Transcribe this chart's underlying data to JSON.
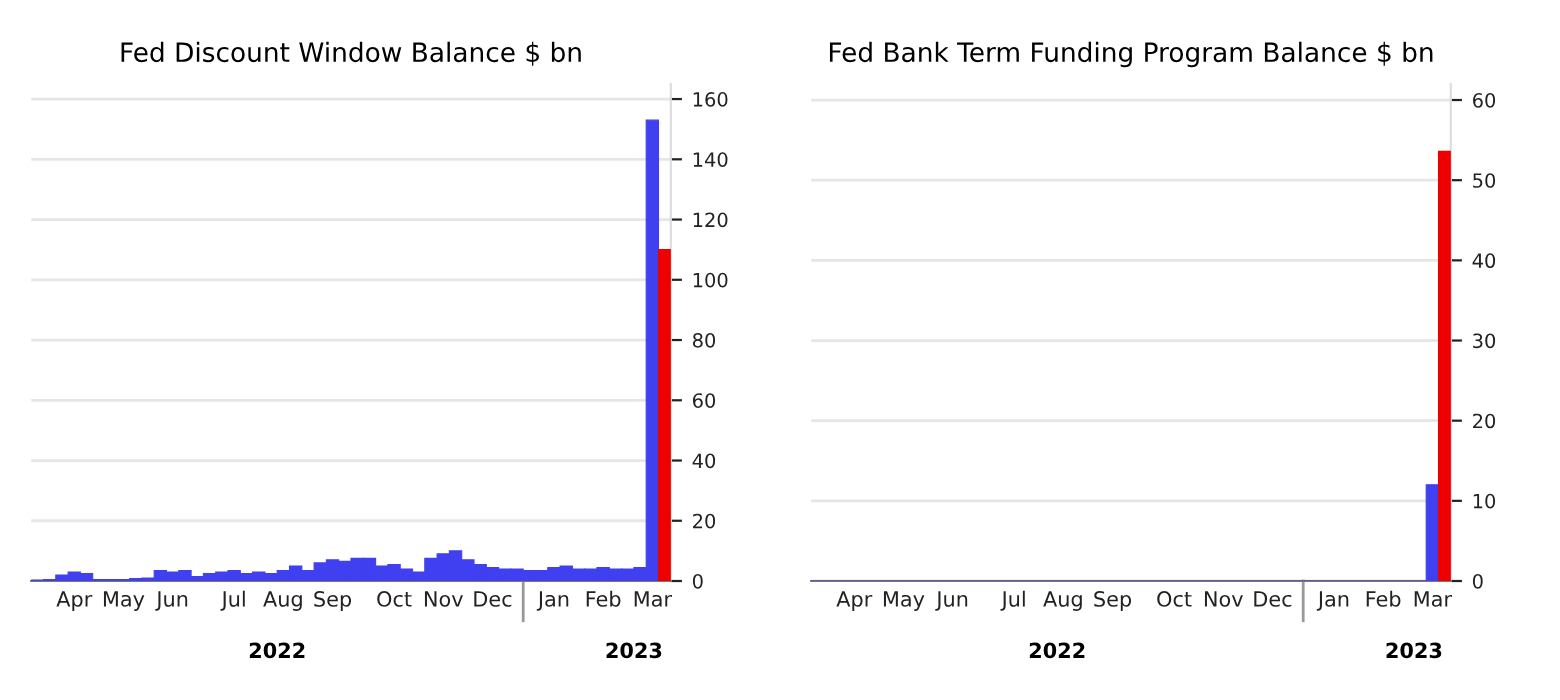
{
  "chart_data": [
    {
      "type": "bar",
      "title": "Fed Discount Window Balance $ bn",
      "categories": [
        null,
        null,
        null,
        "Apr",
        null,
        null,
        null,
        "May",
        null,
        null,
        null,
        "Jun",
        null,
        null,
        null,
        null,
        "Jul",
        null,
        null,
        null,
        "Aug",
        null,
        null,
        null,
        "Sep",
        null,
        null,
        null,
        null,
        "Oct",
        null,
        null,
        null,
        "Nov",
        null,
        null,
        null,
        "Dec",
        null,
        null,
        null,
        null,
        "Jan",
        null,
        null,
        null,
        "Feb",
        null,
        null,
        null,
        "Mar",
        null
      ],
      "values": [
        0.3,
        0.5,
        2,
        3,
        2.5,
        0.5,
        0.5,
        0.5,
        0.8,
        1,
        3.5,
        3,
        3.5,
        1.5,
        2.5,
        3,
        3.5,
        2.5,
        3,
        2.5,
        3.5,
        5,
        3.5,
        6,
        7,
        6.5,
        7.5,
        7.5,
        5,
        5.5,
        4,
        3,
        7.5,
        9,
        10,
        7,
        5.5,
        4.5,
        4,
        4,
        3.5,
        3.5,
        4.5,
        5,
        4,
        4,
        4.5,
        4,
        4,
        4.5,
        153,
        110
      ],
      "colors": [
        "#4040f0",
        "#4040f0",
        "#4040f0",
        "#4040f0",
        "#4040f0",
        "#4040f0",
        "#4040f0",
        "#4040f0",
        "#4040f0",
        "#4040f0",
        "#4040f0",
        "#4040f0",
        "#4040f0",
        "#4040f0",
        "#4040f0",
        "#4040f0",
        "#4040f0",
        "#4040f0",
        "#4040f0",
        "#4040f0",
        "#4040f0",
        "#4040f0",
        "#4040f0",
        "#4040f0",
        "#4040f0",
        "#4040f0",
        "#4040f0",
        "#4040f0",
        "#4040f0",
        "#4040f0",
        "#4040f0",
        "#4040f0",
        "#4040f0",
        "#4040f0",
        "#4040f0",
        "#4040f0",
        "#4040f0",
        "#4040f0",
        "#4040f0",
        "#4040f0",
        "#4040f0",
        "#4040f0",
        "#4040f0",
        "#4040f0",
        "#4040f0",
        "#4040f0",
        "#4040f0",
        "#4040f0",
        "#4040f0",
        "#4040f0",
        "#4040f0",
        "#ee0000"
      ],
      "ylim": [
        0,
        165
      ],
      "yticks": [
        0,
        20,
        40,
        60,
        80,
        100,
        120,
        140,
        160
      ],
      "grid": "y",
      "legend": false,
      "annotations": [
        "2022",
        "2023"
      ]
    },
    {
      "type": "bar",
      "title": "Fed Bank Term Funding Program Balance $ bn",
      "categories": [
        null,
        null,
        null,
        "Apr",
        null,
        null,
        null,
        "May",
        null,
        null,
        null,
        "Jun",
        null,
        null,
        null,
        null,
        "Jul",
        null,
        null,
        null,
        "Aug",
        null,
        null,
        null,
        "Sep",
        null,
        null,
        null,
        null,
        "Oct",
        null,
        null,
        null,
        "Nov",
        null,
        null,
        null,
        "Dec",
        null,
        null,
        null,
        null,
        "Jan",
        null,
        null,
        null,
        "Feb",
        null,
        null,
        null,
        "Mar",
        null
      ],
      "values": [
        0,
        0,
        0,
        0,
        0,
        0,
        0,
        0,
        0,
        0,
        0,
        0,
        0,
        0,
        0,
        0,
        0,
        0,
        0,
        0,
        0,
        0,
        0,
        0,
        0,
        0,
        0,
        0,
        0,
        0,
        0,
        0,
        0,
        0,
        0,
        0,
        0,
        0,
        0,
        0,
        0,
        0,
        0,
        0,
        0,
        0,
        0,
        0,
        0,
        0,
        12,
        53.6
      ],
      "colors": [
        "#4040f0",
        "#4040f0",
        "#4040f0",
        "#4040f0",
        "#4040f0",
        "#4040f0",
        "#4040f0",
        "#4040f0",
        "#4040f0",
        "#4040f0",
        "#4040f0",
        "#4040f0",
        "#4040f0",
        "#4040f0",
        "#4040f0",
        "#4040f0",
        "#4040f0",
        "#4040f0",
        "#4040f0",
        "#4040f0",
        "#4040f0",
        "#4040f0",
        "#4040f0",
        "#4040f0",
        "#4040f0",
        "#4040f0",
        "#4040f0",
        "#4040f0",
        "#4040f0",
        "#4040f0",
        "#4040f0",
        "#4040f0",
        "#4040f0",
        "#4040f0",
        "#4040f0",
        "#4040f0",
        "#4040f0",
        "#4040f0",
        "#4040f0",
        "#4040f0",
        "#4040f0",
        "#4040f0",
        "#4040f0",
        "#4040f0",
        "#4040f0",
        "#4040f0",
        "#4040f0",
        "#4040f0",
        "#4040f0",
        "#4040f0",
        "#4040f0",
        "#ee0000"
      ],
      "ylim": [
        0,
        62
      ],
      "yticks": [
        0,
        10,
        20,
        30,
        40,
        50,
        60
      ],
      "grid": "y",
      "legend": false,
      "annotations": [
        "2022",
        "2023"
      ]
    }
  ]
}
